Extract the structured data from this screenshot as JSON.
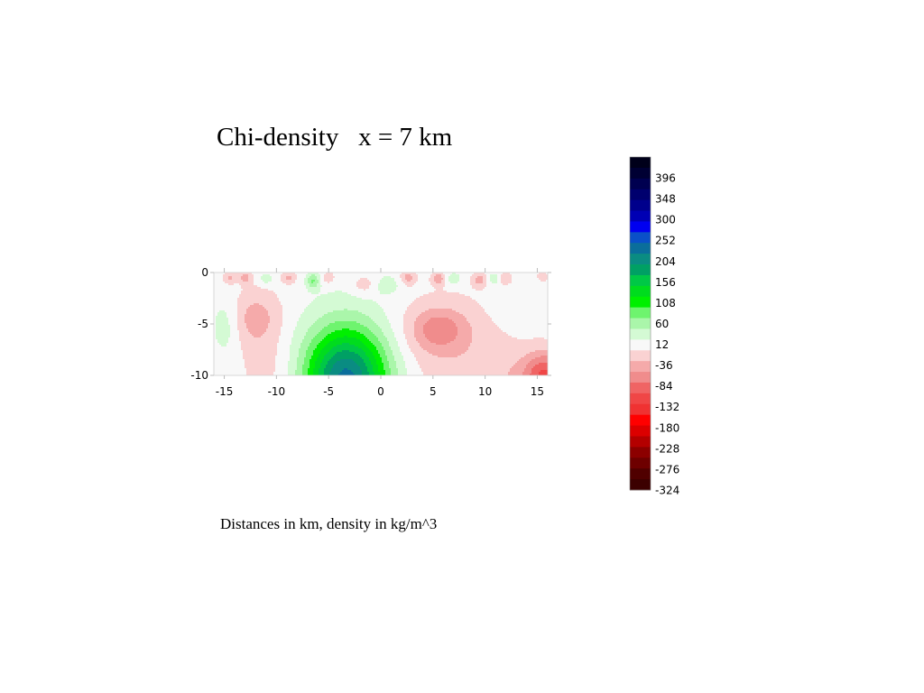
{
  "slide": {
    "title": "Chi-density   x = 7 km",
    "caption": "Distances in km, density in kg/m^3"
  },
  "chart_data": {
    "type": "heatmap",
    "title": "Chi-density   x = 7 km",
    "xlabel": "",
    "ylabel": "",
    "xlim": [
      -16,
      16
    ],
    "ylim": [
      -10,
      0
    ],
    "x_ticks": [
      "-15",
      "-10",
      "-5",
      "0",
      "5",
      "10",
      "15"
    ],
    "x_tick_values": [
      -15,
      -10,
      -5,
      0,
      5,
      10,
      15
    ],
    "y_ticks": [
      "0",
      "-5",
      "-10"
    ],
    "y_tick_values": [
      0,
      -5,
      -10
    ],
    "colorbar": {
      "labels": [
        "396",
        "348",
        "300",
        "252",
        "204",
        "156",
        "108",
        "60",
        "12",
        "-36",
        "-84",
        "-132",
        "-180",
        "-228",
        "-276",
        "-324"
      ],
      "levels": [
        {
          "min": 396,
          "color": "#00001a"
        },
        {
          "min": 372,
          "color": "#000033"
        },
        {
          "min": 348,
          "color": "#000050"
        },
        {
          "min": 324,
          "color": "#00006e"
        },
        {
          "min": 300,
          "color": "#00008c"
        },
        {
          "min": 276,
          "color": "#0000b4"
        },
        {
          "min": 252,
          "color": "#0000f0"
        },
        {
          "min": 228,
          "color": "#0a50c8"
        },
        {
          "min": 204,
          "color": "#0a6e9b"
        },
        {
          "min": 180,
          "color": "#0a8c82"
        },
        {
          "min": 156,
          "color": "#00a064"
        },
        {
          "min": 132,
          "color": "#00c846"
        },
        {
          "min": 108,
          "color": "#00dc1e"
        },
        {
          "min": 84,
          "color": "#00f000"
        },
        {
          "min": 60,
          "color": "#6ef46e"
        },
        {
          "min": 36,
          "color": "#aaf6aa"
        },
        {
          "min": 12,
          "color": "#d4fad4"
        },
        {
          "min": -12,
          "color": "#f8f8f8"
        },
        {
          "min": -36,
          "color": "#fad2d2"
        },
        {
          "min": -60,
          "color": "#f5aaaa"
        },
        {
          "min": -84,
          "color": "#f08c8c"
        },
        {
          "min": -108,
          "color": "#f06464"
        },
        {
          "min": -132,
          "color": "#f04646"
        },
        {
          "min": -156,
          "color": "#f03232"
        },
        {
          "min": -180,
          "color": "#ff0000"
        },
        {
          "min": -204,
          "color": "#dc0000"
        },
        {
          "min": -228,
          "color": "#b40000"
        },
        {
          "min": -252,
          "color": "#8c0000"
        },
        {
          "min": -276,
          "color": "#6e0000"
        },
        {
          "min": -300,
          "color": "#500000"
        },
        {
          "min": -324,
          "color": "#3c0000"
        }
      ]
    },
    "features": [
      {
        "x": -3.3,
        "y": -10.5,
        "sx": 4.0,
        "sy": 5.2,
        "amp": 215
      },
      {
        "x": -14.8,
        "y": -5.2,
        "sx": 1.4,
        "sy": 2.8,
        "amp": 30
      },
      {
        "x": -12.0,
        "y": -4.5,
        "sx": 2.5,
        "sy": 2.8,
        "amp": -48
      },
      {
        "x": -10.5,
        "y": -9.5,
        "sx": 3.0,
        "sy": 3.0,
        "amp": -22
      },
      {
        "x": 5.5,
        "y": -5.5,
        "sx": 2.6,
        "sy": 2.0,
        "amp": -55
      },
      {
        "x": 6.5,
        "y": -7.0,
        "sx": 5.5,
        "sy": 5.0,
        "amp": -30
      },
      {
        "x": 13.0,
        "y": -3.2,
        "sx": 2.5,
        "sy": 1.8,
        "amp": 12
      },
      {
        "x": 15.8,
        "y": -10.0,
        "sx": 2.0,
        "sy": 2.2,
        "amp": -90
      },
      {
        "x": 14.0,
        "y": -10.5,
        "sx": 5.0,
        "sy": 3.0,
        "amp": -30
      },
      {
        "x": 0.5,
        "y": -1.2,
        "sx": 1.5,
        "sy": 1.0,
        "amp": 25
      },
      {
        "x": -1.5,
        "y": -1.2,
        "sx": 1.3,
        "sy": 1.0,
        "amp": -30
      },
      {
        "x": 2.6,
        "y": -0.5,
        "sx": 0.7,
        "sy": 0.7,
        "amp": -45
      },
      {
        "x": -14.5,
        "y": -0.5,
        "sx": 0.6,
        "sy": 0.6,
        "amp": -40
      },
      {
        "x": -13.0,
        "y": -0.5,
        "sx": 0.6,
        "sy": 0.6,
        "amp": -45
      },
      {
        "x": -11.0,
        "y": -0.6,
        "sx": 0.7,
        "sy": 0.6,
        "amp": 30
      },
      {
        "x": -8.8,
        "y": -0.5,
        "sx": 0.7,
        "sy": 0.6,
        "amp": -40
      },
      {
        "x": -6.5,
        "y": -0.8,
        "sx": 0.6,
        "sy": 0.8,
        "amp": 60
      },
      {
        "x": -5.0,
        "y": -0.5,
        "sx": 0.6,
        "sy": 0.6,
        "amp": -35
      },
      {
        "x": 5.5,
        "y": -0.6,
        "sx": 0.6,
        "sy": 0.6,
        "amp": -50
      },
      {
        "x": 7.0,
        "y": -0.6,
        "sx": 0.7,
        "sy": 0.6,
        "amp": 35
      },
      {
        "x": 9.5,
        "y": -0.7,
        "sx": 0.7,
        "sy": 0.7,
        "amp": -45
      },
      {
        "x": 10.8,
        "y": -0.6,
        "sx": 0.6,
        "sy": 0.6,
        "amp": 30
      },
      {
        "x": 12.0,
        "y": -0.6,
        "sx": 0.6,
        "sy": 0.6,
        "amp": -35
      },
      {
        "x": 15.5,
        "y": -0.4,
        "sx": 0.5,
        "sy": 0.5,
        "amp": -30
      }
    ]
  }
}
